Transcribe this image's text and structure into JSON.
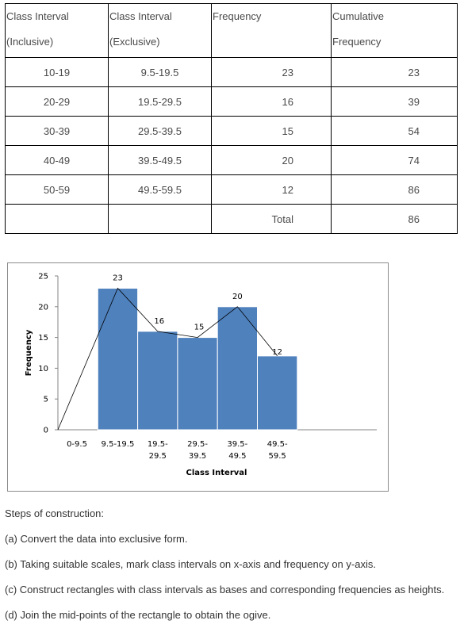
{
  "table": {
    "headers": [
      [
        "Class Interval",
        "(Inclusive)"
      ],
      [
        "Class Interval",
        "(Exclusive)"
      ],
      [
        "Frequency"
      ],
      [
        "Cumulative",
        "Frequency"
      ]
    ],
    "rows": [
      [
        "10-19",
        "9.5-19.5",
        "23",
        "23"
      ],
      [
        "20-29",
        "19.5-29.5",
        "16",
        "39"
      ],
      [
        "30-39",
        "29.5-39.5",
        "15",
        "54"
      ],
      [
        "40-49",
        "39.5-49.5",
        "20",
        "74"
      ],
      [
        "50-59",
        "49.5-59.5",
        "12",
        "86"
      ],
      [
        "",
        "",
        "Total",
        "86"
      ]
    ]
  },
  "chart_data": {
    "type": "bar",
    "categories": [
      [
        "0-9.5"
      ],
      [
        "9.5-19.5"
      ],
      [
        "19.5-",
        "29.5"
      ],
      [
        "29.5-",
        "39.5"
      ],
      [
        "39.5-",
        "49.5"
      ],
      [
        "49.5-",
        "59.5"
      ]
    ],
    "values": [
      0,
      23,
      16,
      15,
      20,
      12
    ],
    "data_labels": [
      "",
      "23",
      "16",
      "15",
      "20",
      "12"
    ],
    "polygon": [
      [
        0,
        0
      ],
      [
        1,
        23
      ],
      [
        2,
        16
      ],
      [
        3,
        15
      ],
      [
        4,
        20
      ],
      [
        5,
        12
      ]
    ],
    "title": "",
    "xlabel": "Class Interval",
    "ylabel": "Frequency",
    "ylim": [
      0,
      25
    ],
    "yticks": [
      0,
      5,
      10,
      15,
      20,
      25
    ],
    "grid": false,
    "legend": "none",
    "bar_color": "#4f81bd",
    "line_color": "#000000"
  },
  "steps": {
    "heading": "Steps of construction:",
    "items": [
      "(a) Convert the data into exclusive form.",
      "(b) Taking suitable scales, mark class intervals on x-axis and frequency on y-axis.",
      "(c) Construct rectangles with class intervals as bases and corresponding frequencies as heights.",
      "(d) Join the mid-points of the rectangle to obtain the ogive."
    ]
  }
}
